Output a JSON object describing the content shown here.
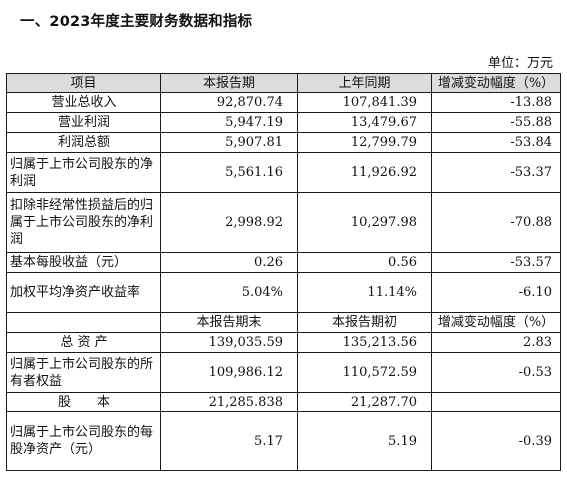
{
  "heading": "一、2023年度主要财务数据和指标",
  "unit": "单位：万元",
  "table1": {
    "header": [
      "项目",
      "本报告期",
      "上年同期",
      "增减变动幅度（%）"
    ],
    "rows": [
      {
        "label": "营业总收入",
        "current": "92,870.74",
        "prior": "107,841.39",
        "change": "-13.88"
      },
      {
        "label": "营业利润",
        "current": "5,947.19",
        "prior": "13,479.67",
        "change": "-55.88"
      },
      {
        "label": "利润总额",
        "current": "5,907.81",
        "prior": "12,799.79",
        "change": "-53.84"
      },
      {
        "label": "归属于上市公司股东的净利润",
        "current": "5,561.16",
        "prior": "11,926.92",
        "change": "-53.37"
      },
      {
        "label": "扣除非经常性损益后的归属于上市公司股东的净利润",
        "current": "2,998.92",
        "prior": "10,297.98",
        "change": "-70.88"
      },
      {
        "label": "基本每股收益（元）",
        "current": "0.26",
        "prior": "0.56",
        "change": "-53.57"
      },
      {
        "label": "加权平均净资产收益率",
        "current": "5.04%",
        "prior": "11.14%",
        "change": "-6.10"
      }
    ]
  },
  "table2": {
    "header": [
      "",
      "本报告期末",
      "本报告期初",
      "增减变动幅度（%）"
    ],
    "rows": [
      {
        "label": "总 资 产",
        "current": "139,035.59",
        "prior": "135,213.56",
        "change": "2.83"
      },
      {
        "label": "归属于上市公司股东的所有者权益",
        "current": "109,986.12",
        "prior": "110,572.59",
        "change": "-0.53"
      },
      {
        "label": "股　　本",
        "current": "21,285.838",
        "prior": "21,287.70",
        "change": ""
      },
      {
        "label": "归属于上市公司股东的每股净资产（元）",
        "current": "5.17",
        "prior": "5.19",
        "change": "-0.39"
      }
    ]
  }
}
